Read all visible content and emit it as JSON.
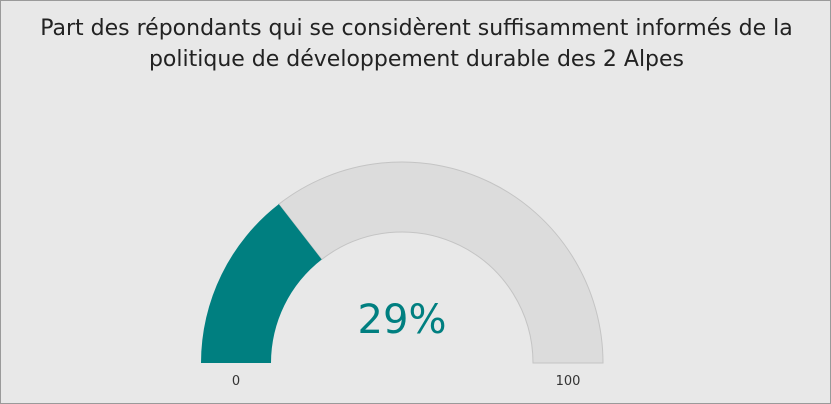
{
  "chart_data": {
    "type": "gauge",
    "title": "Part des répondants qui se considèrent suffisamment informés de la politique de développement durable des 2 Alpes",
    "value": 29,
    "value_labels": [
      "29%"
    ],
    "ylim": [
      0,
      100
    ],
    "yticks": [
      0,
      100
    ],
    "color": "#007f80",
    "track_color": "#dcdcdc"
  }
}
